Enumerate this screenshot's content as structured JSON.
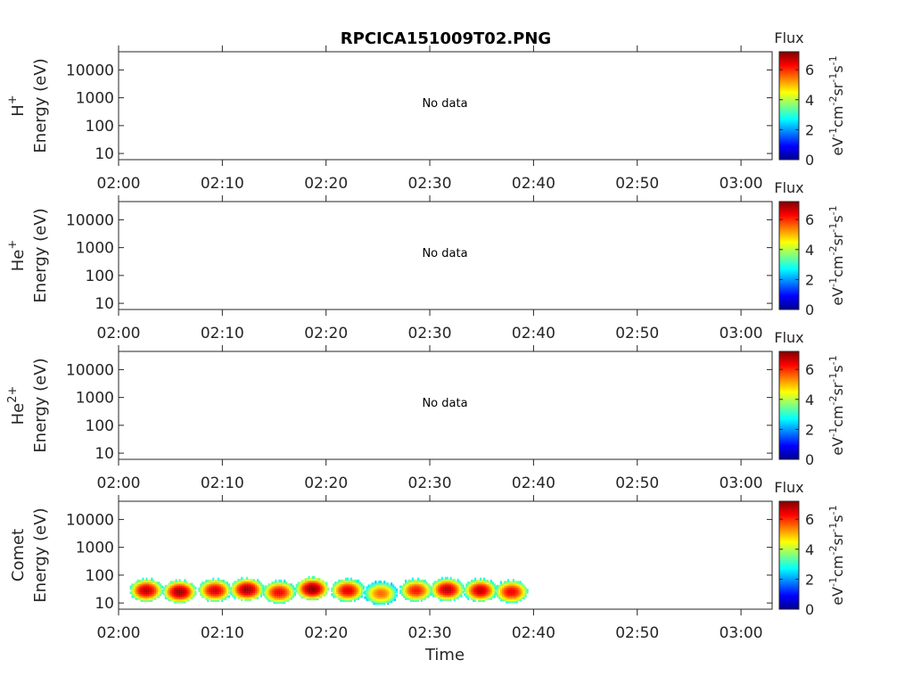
{
  "figure": {
    "title": "RPCICA151009T02.PNG",
    "xlabel": "Time",
    "x_ticks": [
      "02:00",
      "02:10",
      "02:20",
      "02:30",
      "02:40",
      "02:50",
      "03:00"
    ],
    "y_ticks": [
      "10000",
      "1000",
      "100",
      "10"
    ],
    "colorbar": {
      "label": "Flux",
      "unit_parts": [
        "eV",
        "-1",
        "cm",
        "-2",
        "sr",
        "-1",
        "s",
        "-1"
      ],
      "ticks": [
        "0",
        "2",
        "4",
        "6"
      ],
      "colormap": "jet",
      "range": [
        0,
        7.2
      ]
    }
  },
  "chart_data": [
    {
      "type": "heatmap",
      "ylabel": "H+ Energy (eV)",
      "species": "H",
      "species_sup": "+",
      "y_axis_label": "Energy (eV)",
      "message": "No data",
      "xlim": [
        "02:00",
        "03:03"
      ],
      "ylim": [
        6,
        45000
      ],
      "yscale": "log",
      "cells": []
    },
    {
      "type": "heatmap",
      "ylabel": "He+ Energy (eV)",
      "species": "He",
      "species_sup": "+",
      "y_axis_label": "Energy (eV)",
      "message": "No data",
      "xlim": [
        "02:00",
        "03:03"
      ],
      "ylim": [
        6,
        45000
      ],
      "yscale": "log",
      "cells": []
    },
    {
      "type": "heatmap",
      "ylabel": "He2+ Energy (eV)",
      "species": "He",
      "species_sup": "2+",
      "y_axis_label": "Energy (eV)",
      "message": "No data",
      "xlim": [
        "02:00",
        "03:03"
      ],
      "ylim": [
        6,
        45000
      ],
      "yscale": "log",
      "cells": []
    },
    {
      "type": "heatmap",
      "ylabel": "Comet Energy (eV)",
      "species": "Comet",
      "species_sup": "",
      "y_axis_label": "Energy (eV)",
      "message": "",
      "xlim": [
        "02:00",
        "03:03"
      ],
      "ylim": [
        6,
        45000
      ],
      "yscale": "log",
      "bursts": [
        {
          "t": 2.6,
          "e": 28,
          "peak": 6.8
        },
        {
          "t": 5.8,
          "e": 25,
          "peak": 7.0
        },
        {
          "t": 9.2,
          "e": 28,
          "peak": 6.6
        },
        {
          "t": 12.3,
          "e": 30,
          "peak": 7.0
        },
        {
          "t": 15.4,
          "e": 24,
          "peak": 6.4
        },
        {
          "t": 18.6,
          "e": 32,
          "peak": 7.1
        },
        {
          "t": 22.0,
          "e": 28,
          "peak": 6.5
        },
        {
          "t": 25.2,
          "e": 22,
          "peak": 5.6
        },
        {
          "t": 28.6,
          "e": 28,
          "peak": 6.2
        },
        {
          "t": 31.6,
          "e": 30,
          "peak": 6.8
        },
        {
          "t": 34.8,
          "e": 28,
          "peak": 6.7
        },
        {
          "t": 37.8,
          "e": 25,
          "peak": 6.4
        }
      ]
    }
  ]
}
